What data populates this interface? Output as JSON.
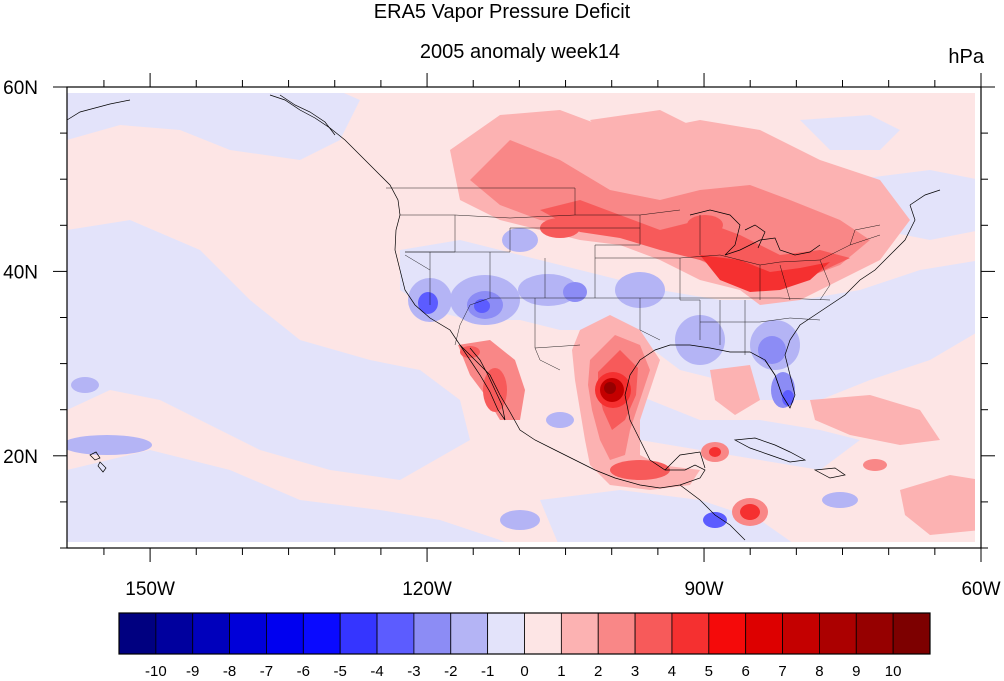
{
  "title": "ERA5 Vapor Pressure Deficit",
  "subtitle": "2005 anomaly week14",
  "units": "hPa",
  "map": {
    "lon_ticks": [
      "150W",
      "120W",
      "90W",
      "60W"
    ],
    "lat_ticks": [
      "60N",
      "40N",
      "20N"
    ],
    "lon_range": [
      -159,
      -60
    ],
    "lat_range": [
      10,
      60
    ]
  },
  "colorbar": {
    "labels": [
      "-10",
      "-9",
      "-8",
      "-7",
      "-6",
      "-5",
      "-4",
      "-3",
      "-2",
      "-1",
      "0",
      "1",
      "2",
      "3",
      "4",
      "5",
      "6",
      "7",
      "8",
      "9",
      "10"
    ],
    "colors": [
      "#000080",
      "#00009e",
      "#0000bc",
      "#0000d9",
      "#0000f0",
      "#0a0aff",
      "#3535ff",
      "#5c5cff",
      "#8c8cf5",
      "#b4b4f5",
      "#e3e3fa",
      "#fde5e5",
      "#fcb2b2",
      "#f98787",
      "#f75a5a",
      "#f53030",
      "#f50a0a",
      "#dd0000",
      "#c40000",
      "#ab0000",
      "#960000",
      "#7d0000"
    ]
  }
}
